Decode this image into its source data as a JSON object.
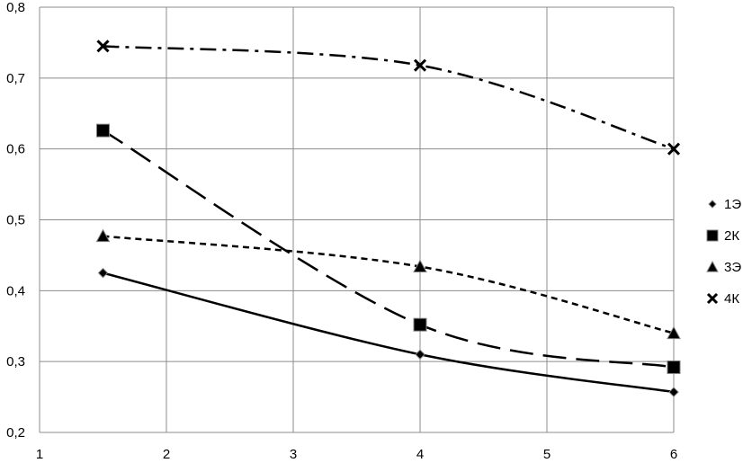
{
  "chart_data": {
    "type": "line",
    "title": "",
    "xlabel": "",
    "ylabel": "",
    "xlim": [
      1,
      6
    ],
    "ylim": [
      0.2,
      0.8
    ],
    "x_ticks": [
      "1",
      "2",
      "3",
      "4",
      "5",
      "6"
    ],
    "y_ticks": [
      "0,2",
      "0,3",
      "0,4",
      "0,5",
      "0,6",
      "0,7",
      "0,8"
    ],
    "grid": true,
    "legend_position": "right",
    "series": [
      {
        "name": "1Э",
        "marker": "diamond",
        "line": "solid",
        "color": "#000000",
        "x": [
          1.5,
          4,
          6
        ],
        "y": [
          0.425,
          0.31,
          0.257
        ]
      },
      {
        "name": "2К",
        "marker": "square",
        "line": "long-dash",
        "color": "#000000",
        "x": [
          1.5,
          4,
          6
        ],
        "y": [
          0.626,
          0.352,
          0.292
        ]
      },
      {
        "name": "3Э",
        "marker": "triangle",
        "line": "short-dash",
        "color": "#000000",
        "x": [
          1.5,
          4,
          6
        ],
        "y": [
          0.477,
          0.434,
          0.34
        ]
      },
      {
        "name": "4К",
        "marker": "x",
        "line": "dash-dot",
        "color": "#000000",
        "x": [
          1.5,
          4,
          6
        ],
        "y": [
          0.745,
          0.718,
          0.6
        ]
      }
    ]
  }
}
